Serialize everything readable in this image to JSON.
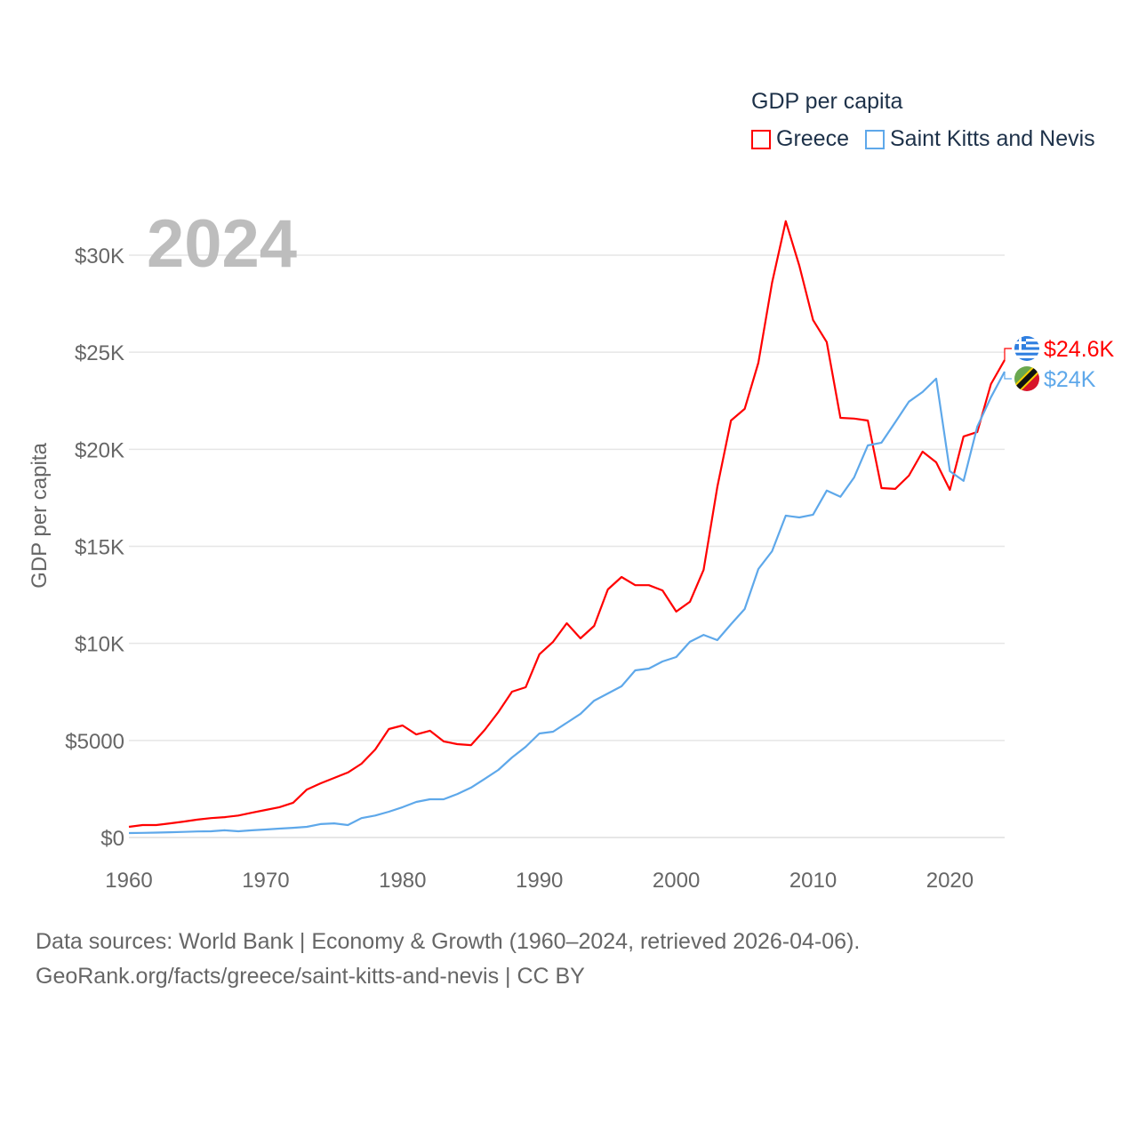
{
  "chart_data": {
    "type": "line",
    "title": "GDP per capita",
    "year_label": "2024",
    "ylabel": "GDP per capita",
    "xlabel": "",
    "xlim": [
      1960,
      2024
    ],
    "ylim": [
      0,
      30000
    ],
    "x_ticks": [
      "1960",
      "1970",
      "1980",
      "1990",
      "2000",
      "2010",
      "2020"
    ],
    "y_ticks": [
      {
        "value": 0,
        "label": "$0"
      },
      {
        "value": 5000,
        "label": "$5000"
      },
      {
        "value": 10000,
        "label": "$10K"
      },
      {
        "value": 15000,
        "label": "$15K"
      },
      {
        "value": 20000,
        "label": "$20K"
      },
      {
        "value": 25000,
        "label": "$25K"
      },
      {
        "value": 30000,
        "label": "$30K"
      }
    ],
    "grid": true,
    "legend_position": "top-right",
    "x": [
      1960,
      1961,
      1962,
      1963,
      1964,
      1965,
      1966,
      1967,
      1968,
      1969,
      1970,
      1971,
      1972,
      1973,
      1974,
      1975,
      1976,
      1977,
      1978,
      1979,
      1980,
      1981,
      1982,
      1983,
      1984,
      1985,
      1986,
      1987,
      1988,
      1989,
      1990,
      1991,
      1992,
      1993,
      1994,
      1995,
      1996,
      1997,
      1998,
      1999,
      2000,
      2001,
      2002,
      2003,
      2004,
      2005,
      2006,
      2007,
      2008,
      2009,
      2010,
      2011,
      2012,
      2013,
      2014,
      2015,
      2016,
      2017,
      2018,
      2019,
      2020,
      2021,
      2022,
      2023,
      2024
    ],
    "series": [
      {
        "name": "Greece",
        "color": "#ff0000",
        "end_label": "$24.6K",
        "flag": "greece-flag",
        "values": [
          550,
          640,
          640,
          730,
          820,
          920,
          1000,
          1050,
          1130,
          1280,
          1420,
          1560,
          1790,
          2470,
          2790,
          3070,
          3350,
          3800,
          4530,
          5590,
          5770,
          5310,
          5500,
          4950,
          4810,
          4760,
          5540,
          6460,
          7510,
          7740,
          9440,
          10080,
          11040,
          10260,
          10900,
          12780,
          13420,
          13000,
          13000,
          12730,
          11640,
          12140,
          13790,
          18050,
          21480,
          22080,
          24460,
          28580,
          31750,
          29450,
          26660,
          25520,
          21620,
          21580,
          21480,
          18000,
          17960,
          18640,
          19880,
          19330,
          17910,
          20660,
          20890,
          23360,
          24600
        ]
      },
      {
        "name": "Saint Kitts and Nevis",
        "color": "#5ea8ea",
        "end_label": "$24K",
        "flag": "saint-kitts-and-nevis-flag",
        "values": [
          230,
          240,
          250,
          270,
          290,
          310,
          320,
          370,
          320,
          370,
          410,
          460,
          500,
          550,
          690,
          730,
          640,
          1000,
          1130,
          1330,
          1560,
          1830,
          1970,
          1970,
          2240,
          2570,
          3020,
          3480,
          4120,
          4670,
          5360,
          5450,
          5910,
          6370,
          7050,
          7420,
          7790,
          8610,
          8700,
          9070,
          9300,
          10080,
          10440,
          10170,
          10990,
          11770,
          13830,
          14750,
          16580,
          16490,
          16630,
          17870,
          17550,
          18550,
          20200,
          20340,
          21390,
          22450,
          22950,
          23640,
          18870,
          18370,
          21160,
          22680,
          24000
        ]
      }
    ]
  },
  "footer": {
    "line1": "Data sources: World Bank | Economy & Growth (1960–2024, retrieved 2026-04-06).",
    "line2": "GeoRank.org/facts/greece/saint-kitts-and-nevis | CC BY"
  }
}
